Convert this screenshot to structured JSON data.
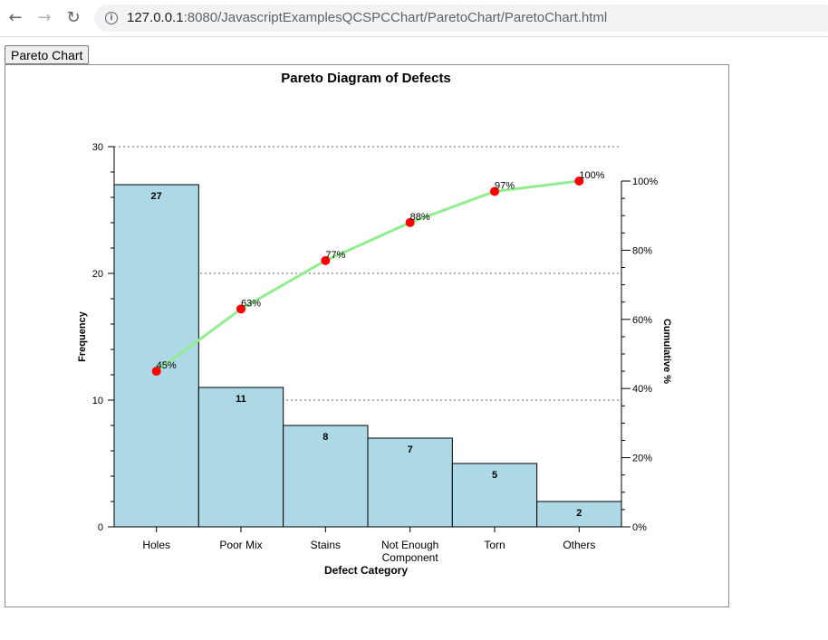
{
  "browser": {
    "url_host": "127.0.0.1",
    "url_rest": ":8080/JavascriptExamplesQCSPCChart/ParetoChart/ParetoChart.html"
  },
  "page": {
    "button_label": "Pareto Chart"
  },
  "colors": {
    "bar_fill": "#add8e6",
    "line": "#90ee90",
    "marker": "#ff0000"
  },
  "chart_data": {
    "type": "bar",
    "title": "Pareto Diagram of Defects",
    "xlabel": "Defect Category",
    "ylabel": "Frequency",
    "y2label": "Cumulative %",
    "categories": [
      "Holes",
      "Poor Mix",
      "Stains",
      "Not Enough Component",
      "Torn",
      "Others"
    ],
    "category_lines": [
      [
        "Holes"
      ],
      [
        "Poor Mix"
      ],
      [
        "Stains"
      ],
      [
        "Not Enough",
        "Component"
      ],
      [
        "Torn"
      ],
      [
        "Others"
      ]
    ],
    "values": [
      27,
      11,
      8,
      7,
      5,
      2
    ],
    "value_labels": [
      "27",
      "11",
      "8",
      "7",
      "5",
      "2"
    ],
    "cumulative_percent": [
      45,
      63,
      77,
      88,
      97,
      100
    ],
    "cumulative_labels": [
      "45%",
      "63%",
      "77%",
      "88%",
      "97%",
      "100%"
    ],
    "ylim": [
      0,
      30
    ],
    "yticks": [
      0,
      10,
      20,
      30
    ],
    "ytick_labels": [
      "0",
      "10",
      "20",
      "30"
    ],
    "y2lim": [
      0,
      100
    ],
    "y2ticks": [
      0,
      20,
      40,
      60,
      80,
      100
    ],
    "y2tick_labels": [
      "0%",
      "20%",
      "40%",
      "60%",
      "80%",
      "100%"
    ],
    "gridlines_at": [
      10,
      20,
      30
    ],
    "grid": "horizontal dotted"
  }
}
